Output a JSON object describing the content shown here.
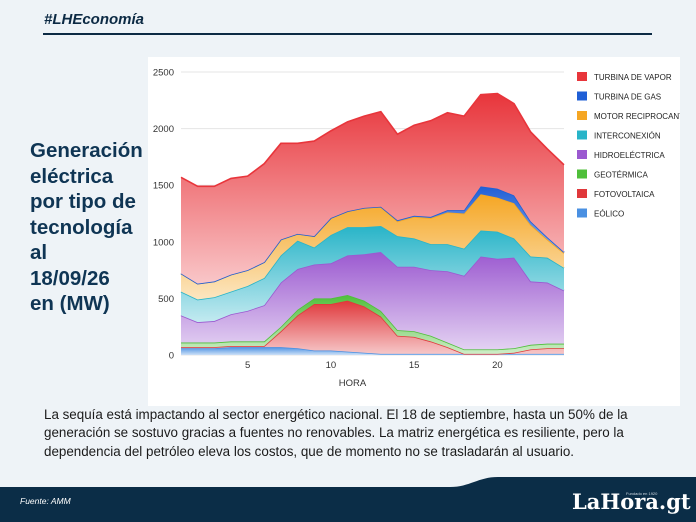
{
  "header": {
    "hashtag": "#LHEconomía"
  },
  "headline": "Generación\neléctrica\npor tipo de\ntecnología\nal\n18/09/26\nen (MW)",
  "body": "La sequía está impactando al sector energético nacional. El 18 de septiembre, hasta un 50% de la generación se sostuvo gracias a fuentes no renovables.  La matriz energética es resiliente, pero la dependencia del petróleo eleva los costos, que de momento no se trasladarán al usuario.",
  "footer": {
    "source": "Fuente: AMM",
    "logo": "LaHora.gt",
    "logo_tagline": "Fundado en 1920"
  },
  "chart_data": {
    "type": "area",
    "stacked": true,
    "xlabel": "HORA",
    "ylabel": "",
    "x": [
      1,
      2,
      3,
      4,
      5,
      6,
      7,
      8,
      9,
      10,
      11,
      12,
      13,
      14,
      15,
      16,
      17,
      18,
      19,
      20,
      21,
      22,
      23,
      24
    ],
    "xticks": [
      5,
      10,
      15,
      20
    ],
    "yticks": [
      0,
      500,
      1000,
      1500,
      2000,
      2500
    ],
    "ylim": [
      0,
      2500
    ],
    "grid": true,
    "legend_position": "right",
    "series": [
      {
        "name": "EÓLICO",
        "color": "#4a90e2",
        "values": [
          60,
          60,
          60,
          70,
          70,
          70,
          70,
          60,
          40,
          40,
          30,
          20,
          10,
          10,
          10,
          10,
          10,
          10,
          10,
          10,
          10,
          10,
          10,
          10
        ]
      },
      {
        "name": "FOTOVOLTAICA",
        "color": "#e0383b",
        "values": [
          10,
          10,
          10,
          10,
          10,
          10,
          140,
          290,
          410,
          410,
          450,
          410,
          330,
          160,
          150,
          110,
          60,
          0,
          0,
          0,
          10,
          40,
          50,
          50
        ]
      },
      {
        "name": "GEOTÉRMICA",
        "color": "#4fbf3a",
        "values": [
          40,
          40,
          40,
          40,
          40,
          40,
          40,
          50,
          50,
          50,
          50,
          50,
          50,
          50,
          50,
          50,
          40,
          40,
          40,
          40,
          40,
          40,
          40,
          40
        ]
      },
      {
        "name": "HIDROELÉCTRICA",
        "color": "#9b59d0",
        "values": [
          240,
          180,
          190,
          240,
          270,
          320,
          390,
          360,
          300,
          310,
          350,
          410,
          520,
          560,
          570,
          580,
          630,
          650,
          820,
          800,
          800,
          560,
          540,
          470
        ]
      },
      {
        "name": "INTERCONEXIÓN",
        "color": "#28b4c8",
        "values": [
          210,
          200,
          210,
          200,
          220,
          240,
          240,
          250,
          150,
          250,
          250,
          240,
          230,
          270,
          250,
          230,
          240,
          240,
          230,
          240,
          170,
          220,
          220,
          200
        ]
      },
      {
        "name": "MOTOR RECIPROCANTE",
        "color": "#f5a623",
        "values": [
          160,
          140,
          140,
          150,
          140,
          140,
          140,
          60,
          100,
          150,
          140,
          170,
          170,
          130,
          190,
          230,
          280,
          310,
          320,
          300,
          310,
          280,
          160,
          130
        ]
      },
      {
        "name": "TURBINA DE GAS",
        "color": "#1f5fd6",
        "values": [
          0,
          0,
          0,
          0,
          0,
          0,
          0,
          0,
          0,
          0,
          0,
          0,
          0,
          10,
          10,
          10,
          20,
          30,
          70,
          80,
          70,
          30,
          20,
          10
        ]
      },
      {
        "name": "TURBINA DE VAPOR",
        "color": "#e8353b",
        "values": [
          850,
          860,
          840,
          850,
          830,
          870,
          850,
          800,
          840,
          770,
          790,
          810,
          840,
          760,
          800,
          850,
          860,
          830,
          810,
          840,
          810,
          790,
          780,
          770
        ]
      }
    ]
  }
}
